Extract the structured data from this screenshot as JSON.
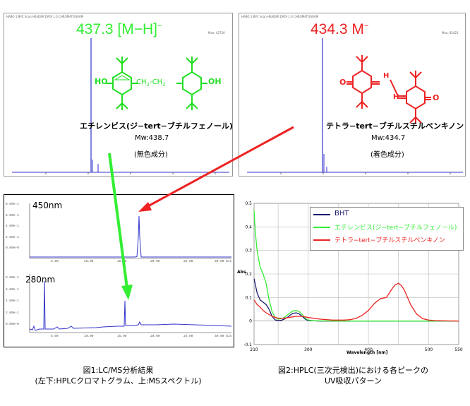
{
  "colors": {
    "green": "#33ee33",
    "red": "#ee2222",
    "blue": "#3333cc",
    "navy": "#1a1a6e",
    "black": "#000000"
  },
  "ms_left": {
    "peak_label": "437.3 [M−H]",
    "peak_sup": "−",
    "compound": "エチレンビス(ジ−tert−ブチルフェノール)",
    "mw": "Mw:438.7",
    "note": "(無色成分)",
    "struct_labels": [
      "HO",
      "CH",
      "2",
      "CH",
      "2",
      "OH"
    ]
  },
  "ms_right": {
    "peak_label": "434.3 M",
    "peak_sup": "−",
    "compound": "テトラ−tert−ブチルスチルベンキノン",
    "mw": "Mw:434.7",
    "note": "(着色成分)",
    "struct_labels": [
      "O",
      "H",
      "H",
      "O"
    ]
  },
  "hplc": {
    "label_450": "450nm",
    "label_280": "280nm",
    "x_ticks": [
      "5.00",
      "10.00",
      "15.00",
      "20.00",
      "25.00",
      "30.00 min"
    ],
    "y_ticks_top": [
      "8.00e-1",
      "6.00e-1",
      "4.00e-1",
      "2.00e-1",
      "0.00e+0"
    ],
    "y_ticks_bottom": [
      "8.00e-1",
      "6.00e-1",
      "4.00e-1",
      "2.00e-1",
      "0.00e+0"
    ]
  },
  "captions": {
    "fig1_line1": "図1:LC/MS分析結果",
    "fig1_line2": "(左下:HPLCクロマトグラム、上:MSスペクトル)",
    "fig2_line1": "図2:HPLC(三次元検出)における各ピークの",
    "fig2_line2": "UV吸収パターン"
  },
  "chart_data": {
    "type": "line",
    "xlabel": "Wavelength [nm]",
    "ylabel": "Abs",
    "xlim": [
      210,
      550
    ],
    "ylim": [
      -0.1,
      0.5
    ],
    "x_ticks": [
      "210",
      "300",
      "400",
      "500",
      "550"
    ],
    "y_ticks": [
      "0.5",
      "0.4",
      "0.3",
      "0.2",
      "0.1",
      "0",
      "-0.1"
    ],
    "grid": true,
    "legend_position": "top-right",
    "series": [
      {
        "name": "BHT",
        "color": "#1a1a6e",
        "x": [
          210,
          215,
          220,
          225,
          230,
          235,
          240,
          245,
          250,
          255,
          260,
          265,
          270,
          275,
          280,
          285,
          290,
          295,
          300,
          320,
          350,
          400,
          450,
          500,
          550
        ],
        "y": [
          0.18,
          0.12,
          0.09,
          0.08,
          0.07,
          0.05,
          0.02,
          0.005,
          0.002,
          0.003,
          0.008,
          0.015,
          0.025,
          0.033,
          0.035,
          0.03,
          0.02,
          0.008,
          0.002,
          0,
          0,
          0,
          0,
          0,
          0
        ]
      },
      {
        "name": "エチレンビス(ジ−tert−ブチルフェノール)",
        "color": "#33ee33",
        "x": [
          210,
          212,
          215,
          220,
          225,
          230,
          235,
          240,
          245,
          250,
          255,
          260,
          265,
          270,
          275,
          280,
          285,
          290,
          295,
          300,
          310,
          350,
          400,
          450,
          500,
          550
        ],
        "y": [
          0.47,
          0.38,
          0.3,
          0.23,
          0.2,
          0.16,
          0.09,
          0.04,
          0.015,
          0.008,
          0.01,
          0.015,
          0.025,
          0.035,
          0.043,
          0.045,
          0.04,
          0.028,
          0.012,
          0.004,
          0.001,
          0,
          0,
          0,
          0,
          0
        ]
      },
      {
        "name": "テトラ−tert−ブチルスチルベンキノン",
        "color": "#ee2222",
        "x": [
          210,
          215,
          220,
          225,
          230,
          240,
          250,
          260,
          270,
          280,
          290,
          300,
          320,
          340,
          360,
          370,
          380,
          390,
          400,
          410,
          420,
          430,
          440,
          445,
          450,
          455,
          460,
          470,
          480,
          490,
          500,
          510,
          520,
          550
        ],
        "y": [
          0.09,
          0.07,
          0.06,
          0.045,
          0.035,
          0.02,
          0.012,
          0.012,
          0.016,
          0.02,
          0.02,
          0.015,
          0.008,
          0.004,
          0.004,
          0.006,
          0.012,
          0.025,
          0.045,
          0.075,
          0.095,
          0.1,
          0.14,
          0.155,
          0.16,
          0.15,
          0.13,
          0.07,
          0.03,
          0.01,
          0.004,
          0.002,
          0.001,
          0
        ]
      }
    ]
  }
}
